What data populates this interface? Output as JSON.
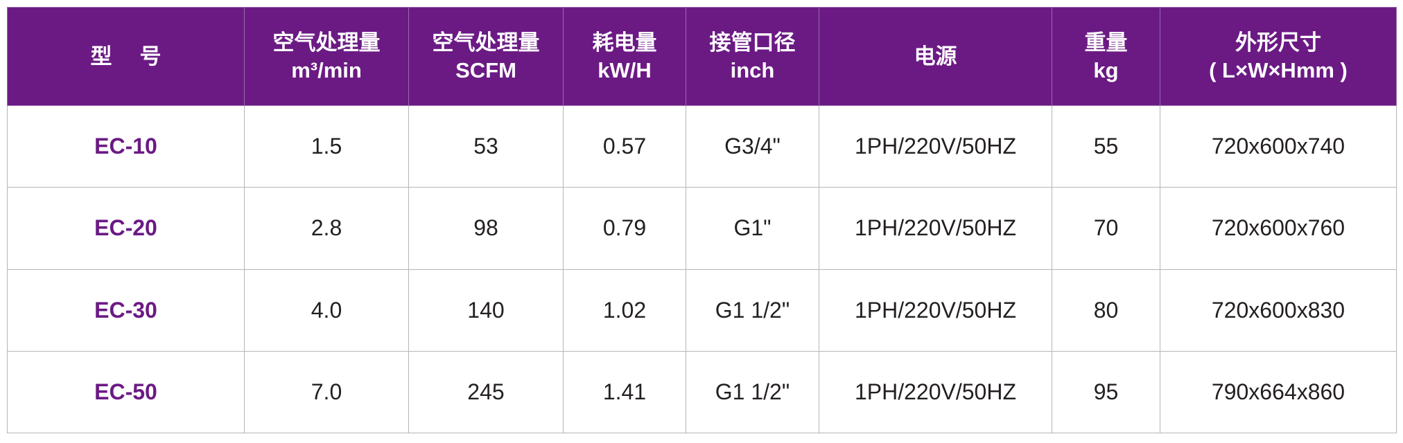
{
  "colors": {
    "header_bg": "#6b1a84",
    "model_text": "#6b1a84",
    "text": "#231f20"
  },
  "headers": [
    {
      "line1": "型号",
      "line2": ""
    },
    {
      "line1": "空气处理量",
      "line2": "m³/min"
    },
    {
      "line1": "空气处理量",
      "line2": "SCFM"
    },
    {
      "line1": "耗电量",
      "line2": "kW/H"
    },
    {
      "line1": "接管口径",
      "line2": "inch"
    },
    {
      "line1": "电源",
      "line2": ""
    },
    {
      "line1": "重量",
      "line2": "kg"
    },
    {
      "line1": "外形尺寸",
      "line2": "( L×W×Hmm )"
    }
  ],
  "rows": [
    [
      "EC-10",
      "1.5",
      "53",
      "0.57",
      "G3/4\"",
      "1PH/220V/50HZ",
      "55",
      "720x600x740"
    ],
    [
      "EC-20",
      "2.8",
      "98",
      "0.79",
      "G1\"",
      "1PH/220V/50HZ",
      "70",
      "720x600x760"
    ],
    [
      "EC-30",
      "4.0",
      "140",
      "1.02",
      "G1 1/2\"",
      "1PH/220V/50HZ",
      "80",
      "720x600x830"
    ],
    [
      "EC-50",
      "7.0",
      "245",
      "1.41",
      "G1 1/2\"",
      "1PH/220V/50HZ",
      "95",
      "790x664x860"
    ]
  ]
}
